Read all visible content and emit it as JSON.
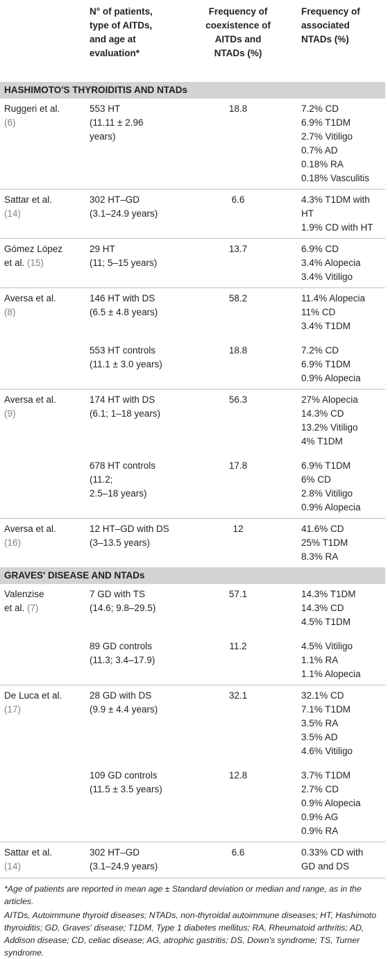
{
  "table": {
    "headers": {
      "col2": [
        "N° of patients,",
        "type of AITDs,",
        "and age at",
        "evaluation*"
      ],
      "col3": [
        "Frequency of",
        "coexistence of",
        "AITDs and",
        "NTADs (%)"
      ],
      "col4": [
        "Frequency of",
        "associated",
        "NTADs (%)"
      ]
    },
    "sections": [
      {
        "title": "HASHIMOTO'S THYROIDITIS AND NTADs",
        "studies": [
          {
            "author": [
              "Ruggeri et al."
            ],
            "ref": "(6)",
            "groups": [
              {
                "patients": [
                  "553 HT",
                  "(11.11 ± 2.96",
                  "years)"
                ],
                "freq": "18.8",
                "ntads": [
                  "7.2% CD",
                  "6.9% T1DM",
                  "2.7% Vitiligo",
                  "0.7% AD",
                  "0.18% RA",
                  "0.18% Vasculitis"
                ]
              }
            ]
          },
          {
            "author": [
              "Sattar et al."
            ],
            "ref": "(14)",
            "groups": [
              {
                "patients": [
                  "302 HT–GD",
                  "(3.1–24.9 years)"
                ],
                "freq": "6.6",
                "ntads": [
                  "4.3% T1DM with",
                  "HT",
                  "1.9% CD with HT"
                ]
              }
            ]
          },
          {
            "author": [
              "Gómez López",
              "et al."
            ],
            "ref": "(15)",
            "groups": [
              {
                "patients": [
                  "29 HT",
                  "(11; 5–15 years)"
                ],
                "freq": "13.7",
                "ntads": [
                  "6.9% CD",
                  "3.4% Alopecia",
                  "3.4% Vitiligo"
                ]
              }
            ]
          },
          {
            "author": [
              "Aversa et al."
            ],
            "ref": "(8)",
            "groups": [
              {
                "patients": [
                  "146 HT with DS",
                  "(6.5 ± 4.8 years)"
                ],
                "freq": "58.2",
                "ntads": [
                  "11.4% Alopecia",
                  "11% CD",
                  "3.4% T1DM"
                ]
              },
              {
                "patients": [
                  "553 HT controls",
                  "(11.1 ± 3.0 years)"
                ],
                "freq": "18.8",
                "ntads": [
                  "7.2% CD",
                  "6.9% T1DM",
                  "0.9% Alopecia"
                ]
              }
            ]
          },
          {
            "author": [
              "Aversa et al."
            ],
            "ref": "(9)",
            "groups": [
              {
                "patients": [
                  "174 HT with DS",
                  "(6.1; 1–18 years)"
                ],
                "freq": "56.3",
                "ntads": [
                  "27% Alopecia",
                  "14.3% CD",
                  "13.2% Vitiligo",
                  "4% T1DM"
                ]
              },
              {
                "patients": [
                  "678 HT controls",
                  "(11.2;",
                  "2.5–18 years)"
                ],
                "freq": "17.8",
                "ntads": [
                  "6.9% T1DM",
                  "6% CD",
                  "2.8% Vitiligo",
                  "0.9% Alopecia"
                ]
              }
            ]
          },
          {
            "author": [
              "Aversa et al."
            ],
            "ref": "(16)",
            "groups": [
              {
                "patients": [
                  "12 HT–GD with DS",
                  "(3–13.5 years)"
                ],
                "freq": "12",
                "ntads": [
                  "41.6% CD",
                  "25% T1DM",
                  "8.3% RA"
                ]
              }
            ]
          }
        ]
      },
      {
        "title": "GRAVES' DISEASE AND NTADs",
        "studies": [
          {
            "author": [
              "Valenzise",
              "et al."
            ],
            "ref": "(7)",
            "groups": [
              {
                "patients": [
                  "7 GD with TS",
                  "(14.6; 9.8–29.5)"
                ],
                "freq": "57.1",
                "ntads": [
                  "14.3% T1DM",
                  "14.3% CD",
                  "4.5% T1DM"
                ]
              },
              {
                "patients": [
                  "89 GD controls",
                  "(11.3; 3.4–17.9)"
                ],
                "freq": "11.2",
                "ntads": [
                  "4.5% Vitiligo",
                  "1.1% RA",
                  "1.1% Alopecia"
                ]
              }
            ]
          },
          {
            "author": [
              "De Luca et al."
            ],
            "ref": "(17)",
            "groups": [
              {
                "patients": [
                  "28 GD with DS",
                  "(9.9 ± 4.4 years)"
                ],
                "freq": "32.1",
                "ntads": [
                  "32.1% CD",
                  "7.1% T1DM",
                  "3.5% RA",
                  "3.5% AD",
                  "4.6% Vitiligo"
                ]
              },
              {
                "patients": [
                  "109 GD controls",
                  "(11.5 ± 3.5 years)"
                ],
                "freq": "12.8",
                "ntads": [
                  "3.7% T1DM",
                  "2.7% CD",
                  "0.9% Alopecia",
                  "0.9% AG",
                  "0.9% RA"
                ]
              }
            ]
          },
          {
            "author": [
              "Sattar et al."
            ],
            "ref": "(14)",
            "groups": [
              {
                "patients": [
                  "302 HT–GD",
                  "(3.1–24.9 years)"
                ],
                "freq": "6.6",
                "ntads": [
                  "0.33% CD with",
                  "GD and DS"
                ]
              }
            ]
          }
        ]
      }
    ],
    "footnotes": [
      "*Age of patients are reported in mean age ± Standard deviation or median and range, as in the articles.",
      "AITDs, Autoimmune thyroid diseases; NTADs, non-thyroidal autoimmune diseases; HT, Hashimoto thyroiditis; GD, Graves' disease; T1DM, Type 1 diabetes mellitus; RA, Rheumatoid arthritis; AD, Addison disease; CD, celiac disease; AG, atrophic gastritis; DS, Down's syndrome; TS, Turner syndrome."
    ]
  }
}
